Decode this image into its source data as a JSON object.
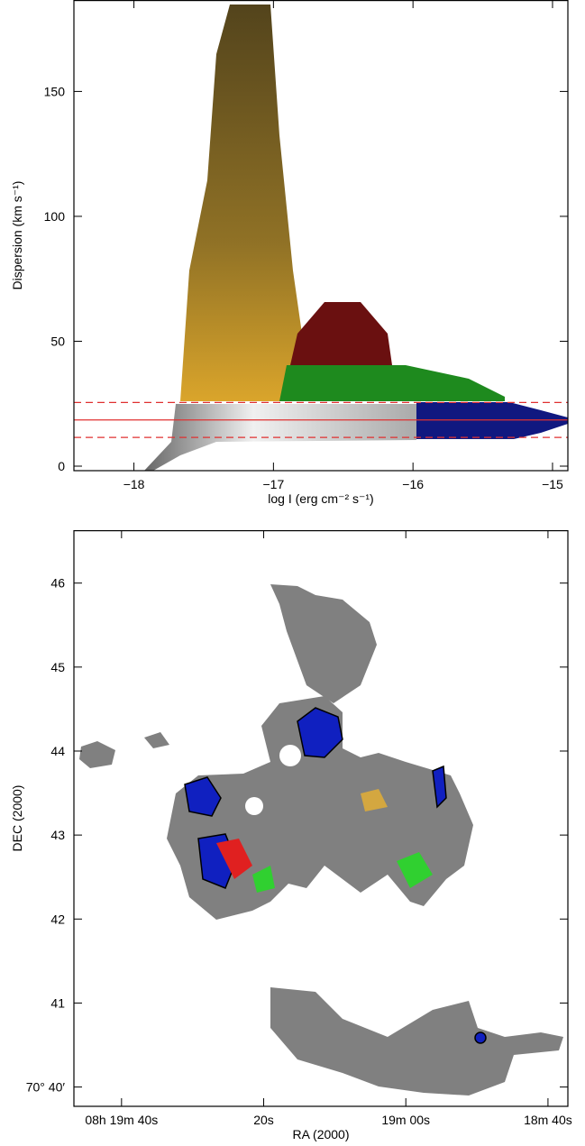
{
  "chart_data": [
    {
      "type": "heatmap",
      "xlabel": "log I (erg cm⁻² s⁻¹)",
      "ylabel": "Dispersion (km s⁻¹)",
      "xlim": [
        -18.43,
        -14.89
      ],
      "ylim": [
        -1.8,
        186.6
      ],
      "xticks": [
        {
          "value": -18,
          "label": "−18"
        },
        {
          "value": -17,
          "label": "−17"
        },
        {
          "value": -16,
          "label": "−16"
        },
        {
          "value": -15,
          "label": "−15"
        }
      ],
      "yticks": [
        0,
        50,
        100,
        150
      ],
      "hlines": [
        {
          "value": 18.5,
          "style": "solid"
        },
        {
          "value": 25.5,
          "style": "dashed"
        },
        {
          "value": 11.5,
          "style": "dashed"
        }
      ],
      "hline_color": "#e03030"
    },
    {
      "type": "map",
      "xlabel": "RA (2000)",
      "ylabel": "DEC (2000)",
      "xlim": [
        1186.7,
        1117.2
      ],
      "ylim": [
        39.77,
        46.63
      ],
      "xticks": [
        {
          "value": 1180,
          "label": "08h 19m 40s"
        },
        {
          "value": 1160,
          "label": "20s"
        },
        {
          "value": 1140,
          "label": "19m 00s"
        },
        {
          "value": 1120,
          "label": "18m 40s"
        }
      ],
      "yticks": [
        46,
        45,
        44,
        43,
        42,
        41,
        {
          "value": 40,
          "label": "70° 40′"
        }
      ]
    }
  ]
}
